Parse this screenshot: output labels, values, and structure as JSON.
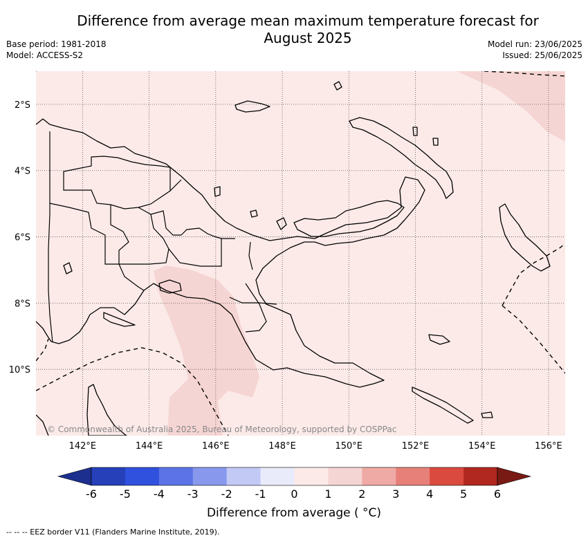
{
  "header": {
    "title": "Difference from average mean maximum temperature forecast for August 2025",
    "base_period": "Base period: 1981-2018",
    "model": "Model: ACCESS-S2",
    "model_run": "Model run: 23/06/2025",
    "issued": "Issued: 25/06/2025"
  },
  "map": {
    "copyright": "© Commonwealth of Australia 2025, Bureau of Meteorology, supported by COSPPac",
    "lat_labels": [
      "2°S",
      "4°S",
      "6°S",
      "8°S",
      "10°S"
    ],
    "lon_labels": [
      "142°E",
      "144°E",
      "146°E",
      "148°E",
      "150°E",
      "152°E",
      "154°E",
      "156°E"
    ],
    "lat_values": [
      -2,
      -4,
      -6,
      -8,
      -10
    ],
    "lon_values": [
      142,
      144,
      146,
      148,
      150,
      152,
      154,
      156
    ],
    "extent": {
      "lon": [
        140.6,
        156.5
      ],
      "lat": [
        -12.0,
        -1.0
      ]
    },
    "colors": {
      "background_anomaly": "#fbeae8",
      "warmer_anomaly": "#f5d5d3",
      "land_outline": "#000000",
      "grid": "#555555"
    }
  },
  "colorbar": {
    "ticks": [
      "-6",
      "-5",
      "-4",
      "-3",
      "-2",
      "-1",
      "0",
      "1",
      "2",
      "3",
      "4",
      "5",
      "6"
    ],
    "colors": [
      "#1c2f8f",
      "#2540b8",
      "#3050de",
      "#5b73e6",
      "#8898ec",
      "#c2c9f5",
      "#e9ebfb",
      "#fbeae8",
      "#f5d5d3",
      "#efaaa6",
      "#e68079",
      "#da4a3e",
      "#b0281f",
      "#7a1a14"
    ],
    "label": "Difference from average ( °C)"
  },
  "footer": {
    "legend": "-- -- -- EEZ border V11 (Flanders Marine Institute, 2019)."
  }
}
